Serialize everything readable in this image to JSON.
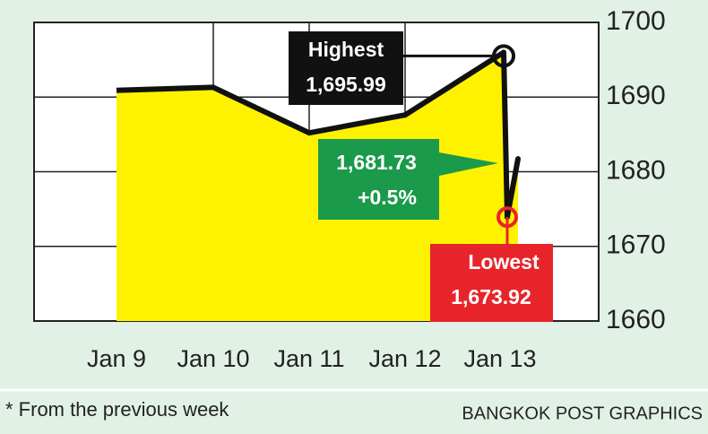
{
  "chart_data": {
    "type": "line",
    "categories": [
      "Jan 9",
      "Jan 10",
      "Jan 11",
      "Jan 12",
      "Jan 13"
    ],
    "values": [
      1690.9,
      1691.3,
      1685.2,
      1687.6,
      1681.73
    ],
    "value_labels": [
      null,
      null,
      null,
      null,
      "1,681.73"
    ],
    "change": "+0.5%",
    "high": {
      "title": "Highest",
      "value": 1695.99,
      "label": "1,695.99"
    },
    "low": {
      "title": "Lowest",
      "value": 1673.92,
      "label": "1,673.92"
    },
    "color": "#111111",
    "fill": "#fff200",
    "ylim": [
      1660,
      1700
    ],
    "yticks": [
      1660,
      1670,
      1680,
      1690,
      1700
    ],
    "grid": true,
    "note": "* From the previous week",
    "source": "BANGKOK POST GRAPHICS"
  }
}
